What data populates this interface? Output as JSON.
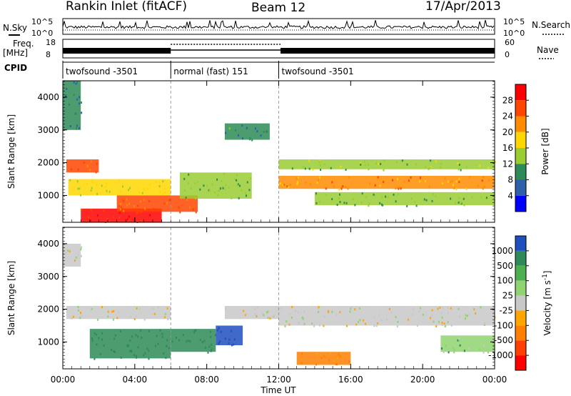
{
  "header": {
    "station": "Rankin Inlet (fitACF)",
    "beam": "Beam 12",
    "date": "17/Apr/2013"
  },
  "nsky_panel": {
    "left_label": "N.Sky",
    "right_label": "N.Search",
    "yticks_left": [
      "10^5",
      "10^0"
    ],
    "yticks_right": [
      "10^5",
      "10^0"
    ]
  },
  "freq_panel": {
    "left_label_top": "Freq.",
    "left_label_unit": "[MHz]",
    "right_label": "Nave",
    "yticks_left": [
      "18",
      "8"
    ],
    "yticks_right": [
      "60",
      "0"
    ]
  },
  "cpid": {
    "label": "CPID",
    "segments": [
      {
        "start": 0.0,
        "end": 6.0,
        "label": "twofsound -3501"
      },
      {
        "start": 6.0,
        "end": 12.0,
        "label": "normal (fast) 151"
      },
      {
        "start": 12.0,
        "end": 24.0,
        "label": "twofsound -3501"
      }
    ]
  },
  "xaxis": {
    "title": "Time UT",
    "ticks": [
      "00:00",
      "04:00",
      "08:00",
      "12:00",
      "16:00",
      "20:00",
      "00:00"
    ]
  },
  "power_colorbar": {
    "title": "Power [dB]",
    "ticks": [
      "28",
      "24",
      "20",
      "16",
      "12",
      "8",
      "4"
    ],
    "colors": [
      "#ff0000",
      "#ff4500",
      "#ff8c00",
      "#ffd700",
      "#9acd32",
      "#2e8b57",
      "#2e5fa8",
      "#0000ff"
    ]
  },
  "velocity_colorbar": {
    "title": "Velocity [m s",
    "title_sup": "-1",
    "title_end": "]",
    "ticks": [
      "1000",
      "500",
      "100",
      "25",
      "-25",
      "-100",
      "-500",
      "-1000"
    ],
    "colors": [
      "#1f4fbf",
      "#2e8b57",
      "#4caf50",
      "#8fd46e",
      "#c8c8c8",
      "#ffa500",
      "#ff7f00",
      "#ff4000",
      "#ff0000"
    ]
  },
  "chart_data": [
    {
      "type": "heatmap",
      "title": "",
      "xlabel": "",
      "ylabel": "Slant Range [km]",
      "xlim": [
        0,
        24
      ],
      "ylim": [
        180,
        4500
      ],
      "yticks": [
        "4000",
        "3000",
        "2000",
        "1000"
      ],
      "ytick_values": [
        4000,
        3000,
        2000,
        1000
      ],
      "colorbar_label": "Power [dB]",
      "regions": [
        {
          "x": [
            0.2,
            2.0
          ],
          "y": [
            1700,
            2100
          ],
          "value": 24
        },
        {
          "x": [
            0.3,
            6.0
          ],
          "y": [
            1000,
            1500
          ],
          "value": 16
        },
        {
          "x": [
            1.0,
            5.5
          ],
          "y": [
            180,
            600
          ],
          "value": 28
        },
        {
          "x": [
            3.0,
            7.5
          ],
          "y": [
            500,
            1000
          ],
          "value": 24
        },
        {
          "x": [
            6.5,
            10.5
          ],
          "y": [
            900,
            1700
          ],
          "value": 12
        },
        {
          "x": [
            9.0,
            11.5
          ],
          "y": [
            2700,
            3200
          ],
          "value": 10
        },
        {
          "x": [
            12.0,
            24.0
          ],
          "y": [
            1200,
            1600
          ],
          "value": 22
        },
        {
          "x": [
            12.0,
            24.0
          ],
          "y": [
            1800,
            2100
          ],
          "value": 14
        },
        {
          "x": [
            14.0,
            24.0
          ],
          "y": [
            700,
            1100
          ],
          "value": 12
        },
        {
          "x": [
            0.0,
            1.0
          ],
          "y": [
            3000,
            4500
          ],
          "value": 8
        }
      ]
    },
    {
      "type": "heatmap",
      "title": "",
      "xlabel": "Time UT",
      "ylabel": "Slant Range [km]",
      "xlim": [
        0,
        24
      ],
      "ylim": [
        180,
        4500
      ],
      "yticks": [
        "4000",
        "3000",
        "2000",
        "1000"
      ],
      "ytick_values": [
        4000,
        3000,
        2000,
        1000
      ],
      "colorbar_label": "Velocity [m s-1]",
      "regions": [
        {
          "x": [
            0.2,
            6.0
          ],
          "y": [
            1700,
            2100
          ],
          "value": 0
        },
        {
          "x": [
            1.5,
            6.0
          ],
          "y": [
            500,
            1400
          ],
          "value": 200
        },
        {
          "x": [
            6.0,
            8.5
          ],
          "y": [
            700,
            1400
          ],
          "value": 200
        },
        {
          "x": [
            8.5,
            10.0
          ],
          "y": [
            900,
            1500
          ],
          "value": 800
        },
        {
          "x": [
            9.0,
            12.0
          ],
          "y": [
            1700,
            2100
          ],
          "value": 0
        },
        {
          "x": [
            12.0,
            24.0
          ],
          "y": [
            1500,
            2100
          ],
          "value": 0
        },
        {
          "x": [
            13.0,
            16.0
          ],
          "y": [
            300,
            700
          ],
          "value": -150
        },
        {
          "x": [
            21.0,
            24.0
          ],
          "y": [
            700,
            1200
          ],
          "value": 60
        },
        {
          "x": [
            0.0,
            1.0
          ],
          "y": [
            3300,
            4000
          ],
          "value": 0
        }
      ]
    }
  ]
}
